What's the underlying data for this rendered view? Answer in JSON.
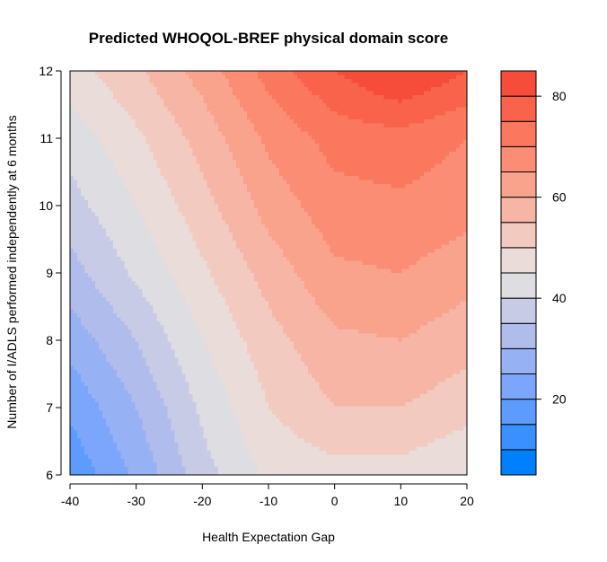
{
  "chart_data": {
    "type": "heatmap",
    "subtype": "filled-contour",
    "title": "Predicted WHOQOL-BREF physical domain score",
    "xlabel": "Health Expectation Gap",
    "ylabel": "Number of I/ADLS performed independently at 6 months",
    "xlim": [
      -40,
      20
    ],
    "ylim": [
      6,
      12
    ],
    "x_ticks": [
      -40,
      -30,
      -20,
      -10,
      0,
      10,
      20
    ],
    "y_ticks": [
      6,
      7,
      8,
      9,
      10,
      11,
      12
    ],
    "z_levels": [
      5,
      10,
      15,
      20,
      25,
      30,
      35,
      40,
      45,
      50,
      55,
      60,
      65,
      70,
      75,
      80,
      85
    ],
    "z_ticks": [
      20,
      40,
      60,
      80
    ],
    "level_colors": [
      "#0080FF",
      "#3A90FF",
      "#5D9BFF",
      "#7CA6FB",
      "#97B1F5",
      "#B0BCEC",
      "#C8CBE5",
      "#DDDDE2",
      "#E9DCD9",
      "#F3CAC0",
      "#F7B6A5",
      "#F9A28C",
      "#FA8D74",
      "#FA785E",
      "#F9634B",
      "#F64C3A"
    ],
    "grid_points": {
      "x": [
        -40,
        -30,
        -20,
        -10,
        0,
        10,
        20
      ],
      "y": [
        6,
        7,
        8,
        9,
        10,
        11,
        12
      ],
      "z": [
        [
          16,
          26,
          38,
          46,
          48,
          48,
          45
        ],
        [
          21,
          30,
          41,
          50,
          55,
          55,
          52
        ],
        [
          27,
          35,
          45,
          53,
          59,
          60,
          57
        ],
        [
          33,
          41,
          49,
          57,
          64,
          65,
          62
        ],
        [
          38,
          45,
          53,
          62,
          68,
          69,
          67
        ],
        [
          42,
          49,
          57,
          66,
          72,
          73,
          70
        ],
        [
          48,
          54,
          62,
          72,
          80,
          86,
          80
        ]
      ]
    }
  }
}
